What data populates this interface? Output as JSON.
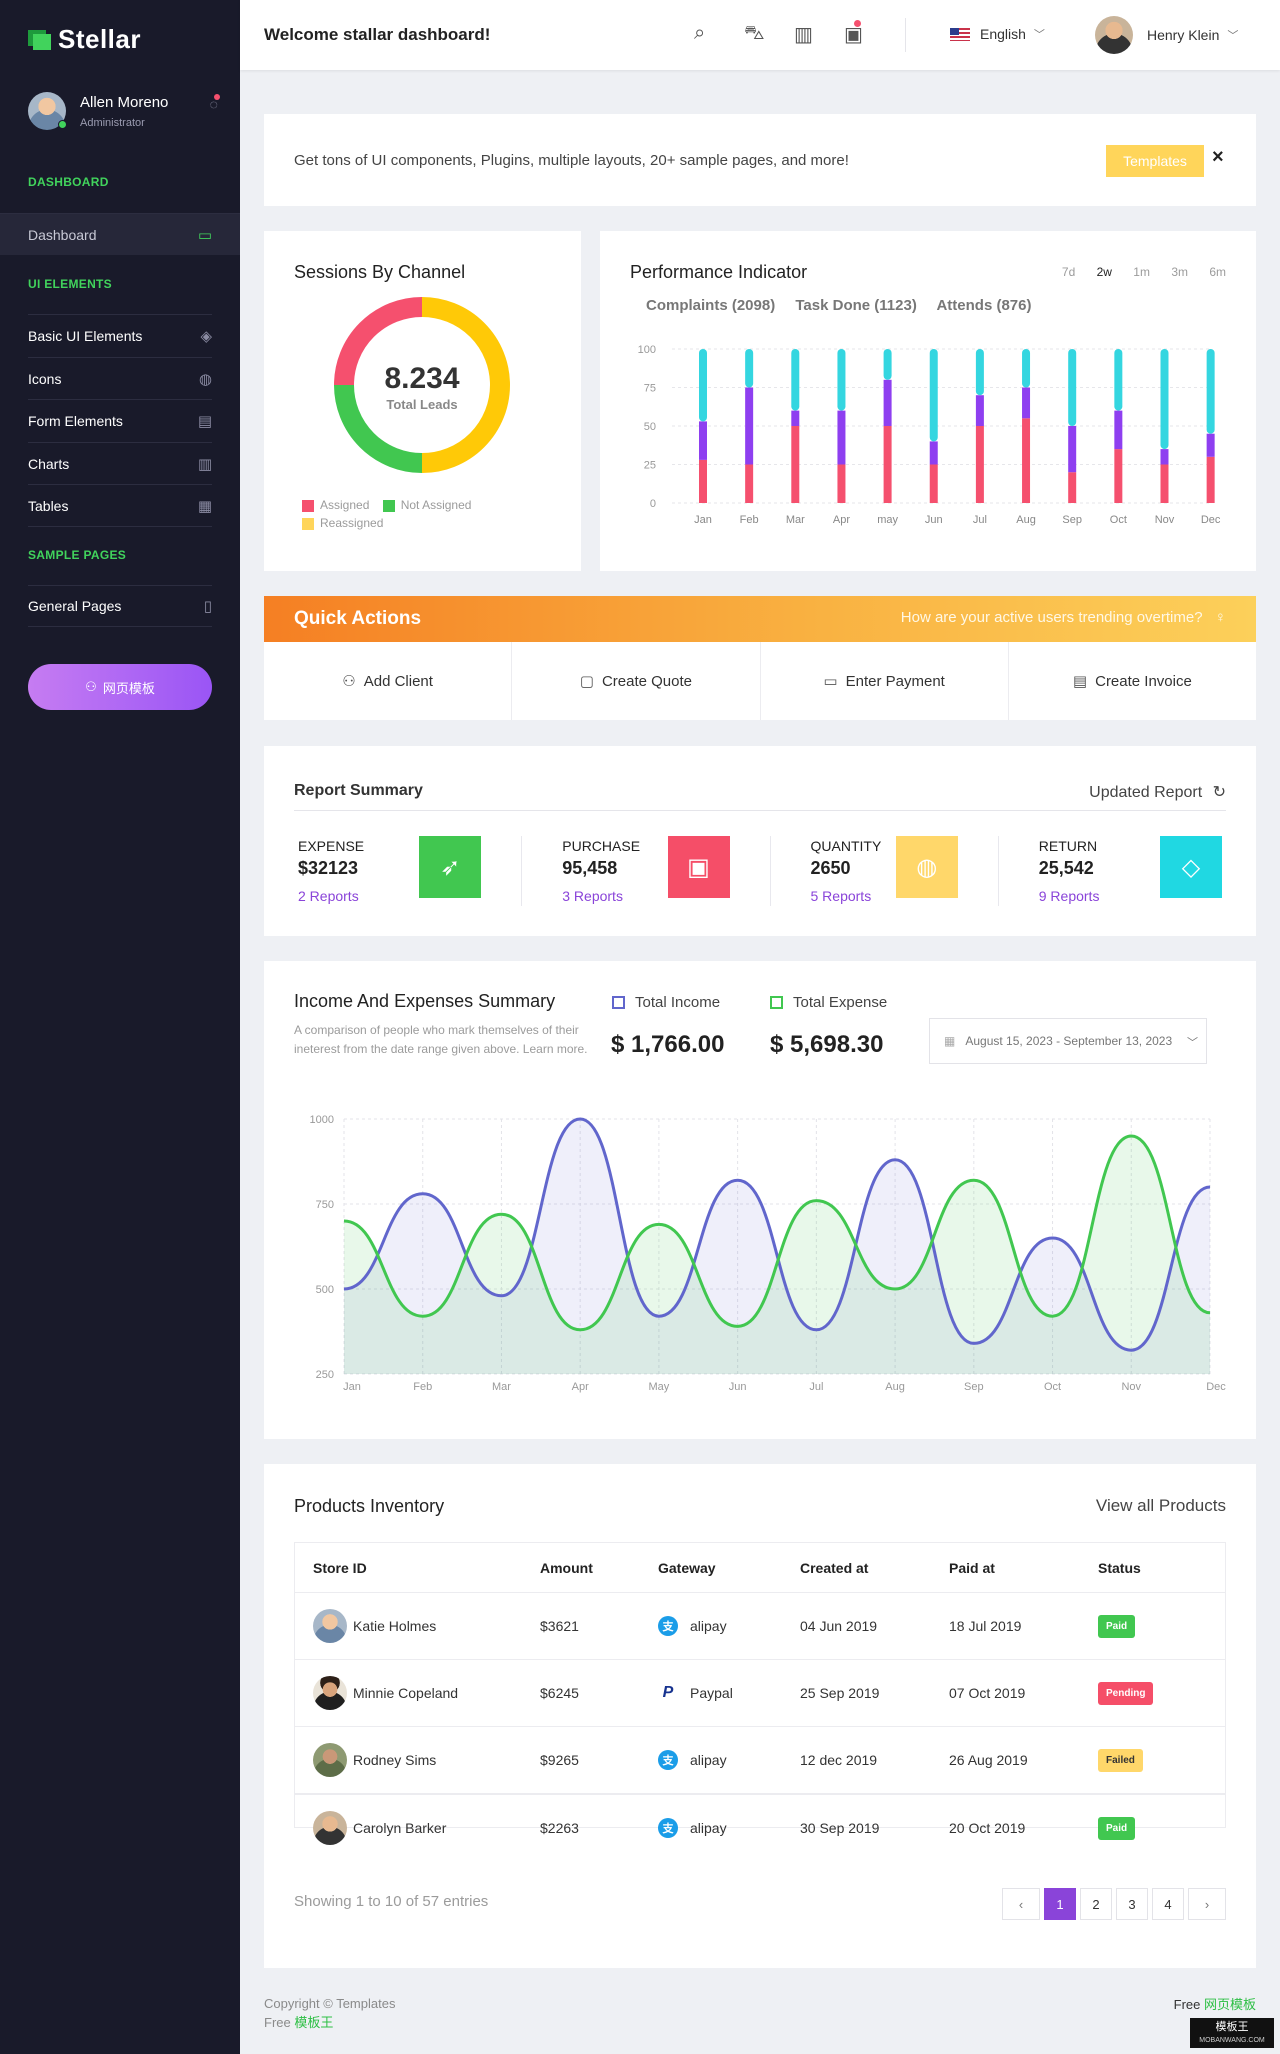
{
  "sidebar": {
    "brand": "Stellar",
    "profile": {
      "name": "Allen Moreno",
      "role": "Administrator"
    },
    "sections": [
      {
        "title": "DASHBOARD",
        "items": [
          {
            "label": "Dashboard",
            "icon": "monitor-icon",
            "active": true
          }
        ]
      },
      {
        "title": "UI ELEMENTS",
        "items": [
          {
            "label": "Basic UI Elements",
            "icon": "layers-icon"
          },
          {
            "label": "Icons",
            "icon": "globe-icon"
          },
          {
            "label": "Form Elements",
            "icon": "book-icon"
          },
          {
            "label": "Charts",
            "icon": "bar-chart-icon"
          },
          {
            "label": "Tables",
            "icon": "grid-icon"
          }
        ]
      },
      {
        "title": "SAMPLE PAGES",
        "items": [
          {
            "label": "General Pages",
            "icon": "file-icon"
          }
        ]
      }
    ],
    "cta_label": "网页模板"
  },
  "topbar": {
    "title": "Welcome stallar dashboard!",
    "language": "English",
    "user_name": "Henry Klein"
  },
  "promo": {
    "text": "Get tons of UI components, Plugins, multiple layouts, 20+ sample pages, and more!",
    "button_label": "Templates",
    "close_label": "×"
  },
  "sessions": {
    "title": "Sessions By Channel",
    "total_value": "8.234",
    "total_label": "Total Leads",
    "legend": [
      {
        "label": "Assigned",
        "color": "#f5506e"
      },
      {
        "label": "Not Assigned",
        "color": "#41c750"
      },
      {
        "label": "Reassigned",
        "color": "#ffd55a"
      }
    ]
  },
  "performance": {
    "title": "Performance Indicator",
    "ranges": [
      "7d",
      "2w",
      "1m",
      "3m",
      "6m"
    ],
    "active_range": "2w",
    "tabs": [
      "Complaints (2098)",
      "Task Done (1123)",
      "Attends (876)"
    ]
  },
  "quick_actions": {
    "title": "Quick Actions",
    "question": "How are your active users trending overtime?",
    "actions": [
      {
        "label": "Add Client",
        "icon": "user-icon"
      },
      {
        "label": "Create Quote",
        "icon": "clipboard-icon"
      },
      {
        "label": "Enter Payment",
        "icon": "folder-icon"
      },
      {
        "label": "Create Invoice",
        "icon": "book-icon"
      }
    ]
  },
  "report": {
    "title": "Report Summary",
    "updated_label": "Updated Report",
    "items": [
      {
        "label": "EXPENSE",
        "value": "$32123",
        "link": "2 Reports",
        "color": "#41c750",
        "icon": "rocket-icon"
      },
      {
        "label": "PURCHASE",
        "value": "95,458",
        "link": "3 Reports",
        "color": "#f54e68",
        "icon": "briefcase-icon"
      },
      {
        "label": "QUANTITY",
        "value": "2650",
        "link": "5 Reports",
        "color": "#ffd76a",
        "icon": "globe-icon"
      },
      {
        "label": "RETURN",
        "value": "25,542",
        "link": "9 Reports",
        "color": "#20d8e2",
        "icon": "diamond-icon"
      }
    ]
  },
  "income": {
    "title": "Income And Expenses Summary",
    "description": "A comparison of people who mark themselves of their ineterest from the date range given above. Learn more.",
    "income_label": "Total Income",
    "income_value": "$ 1,766.00",
    "expense_label": "Total Expense",
    "expense_value": "$ 5,698.30",
    "date_range": "August 15, 2023 - September 13, 2023"
  },
  "products": {
    "title": "Products Inventory",
    "view_all": "View all Products",
    "columns": [
      "Store ID",
      "Amount",
      "Gateway",
      "Created at",
      "Paid at",
      "Status"
    ],
    "rows": [
      {
        "name": "Katie Holmes",
        "amount": "$3621",
        "gateway": "alipay",
        "created": "04 Jun 2019",
        "paid": "18 Jul 2019",
        "status": "Paid"
      },
      {
        "name": "Minnie Copeland",
        "amount": "$6245",
        "gateway": "Paypal",
        "created": "25 Sep 2019",
        "paid": "07 Oct 2019",
        "status": "Pending"
      },
      {
        "name": "Rodney Sims",
        "amount": "$9265",
        "gateway": "alipay",
        "created": "12 dec 2019",
        "paid": "26 Aug 2019",
        "status": "Failed"
      },
      {
        "name": "Carolyn Barker",
        "amount": "$2263",
        "gateway": "alipay",
        "created": "30 Sep 2019",
        "paid": "20 Oct 2019",
        "status": "Paid"
      }
    ],
    "showing": "Showing 1 to 10 of 57 entries",
    "pages": [
      "1",
      "2",
      "3",
      "4"
    ],
    "current_page": "1"
  },
  "footer": {
    "copyright": "Copyright © Templates",
    "free_prefix": "Free",
    "free_link": "模板王",
    "right_prefix": "Free",
    "right_link": "网页模板"
  },
  "watermark": {
    "text": "模板王",
    "sub": "MOBANWANG.COM"
  },
  "chart_data": [
    {
      "type": "pie",
      "labels": [
        "Assigned",
        "Not Assigned",
        "Reassigned"
      ],
      "values": [
        25,
        25,
        50
      ],
      "colors": [
        "#f5506e",
        "#41c750",
        "#ffc907"
      ]
    },
    {
      "type": "bar",
      "stacked": true,
      "categories": [
        "Jan",
        "Feb",
        "Mar",
        "Apr",
        "may",
        "Jun",
        "Jul",
        "Aug",
        "Sep",
        "Oct",
        "Nov",
        "Dec"
      ],
      "series": [
        {
          "values": [
            28,
            25,
            50,
            25,
            50,
            25,
            50,
            55,
            20,
            35,
            25,
            30
          ],
          "color": "#f5506e"
        },
        {
          "values": [
            25,
            50,
            10,
            35,
            30,
            15,
            20,
            20,
            30,
            25,
            10,
            15
          ],
          "color": "#8e3ff0"
        },
        {
          "values": [
            47,
            25,
            40,
            40,
            20,
            60,
            30,
            25,
            50,
            40,
            65,
            55
          ],
          "color": "#34d6e0"
        }
      ],
      "ylim": [
        0,
        100
      ],
      "yticks": [
        0,
        25,
        50,
        75,
        100
      ]
    },
    {
      "type": "area",
      "categories": [
        "Jan",
        "Feb",
        "Mar",
        "Apr",
        "May",
        "Jun",
        "Jul",
        "Aug",
        "Sep",
        "Oct",
        "Nov",
        "Dec"
      ],
      "series": [
        {
          "name": "Total Income",
          "color": "#6166cc",
          "values": [
            500,
            780,
            480,
            1000,
            420,
            820,
            380,
            880,
            340,
            650,
            320,
            800
          ]
        },
        {
          "name": "Total Expense",
          "color": "#41c750",
          "values": [
            700,
            420,
            720,
            380,
            690,
            390,
            760,
            500,
            820,
            420,
            950,
            430
          ]
        }
      ],
      "ylim": [
        250,
        1000
      ],
      "yticks": [
        250,
        500,
        750,
        1000
      ]
    }
  ]
}
